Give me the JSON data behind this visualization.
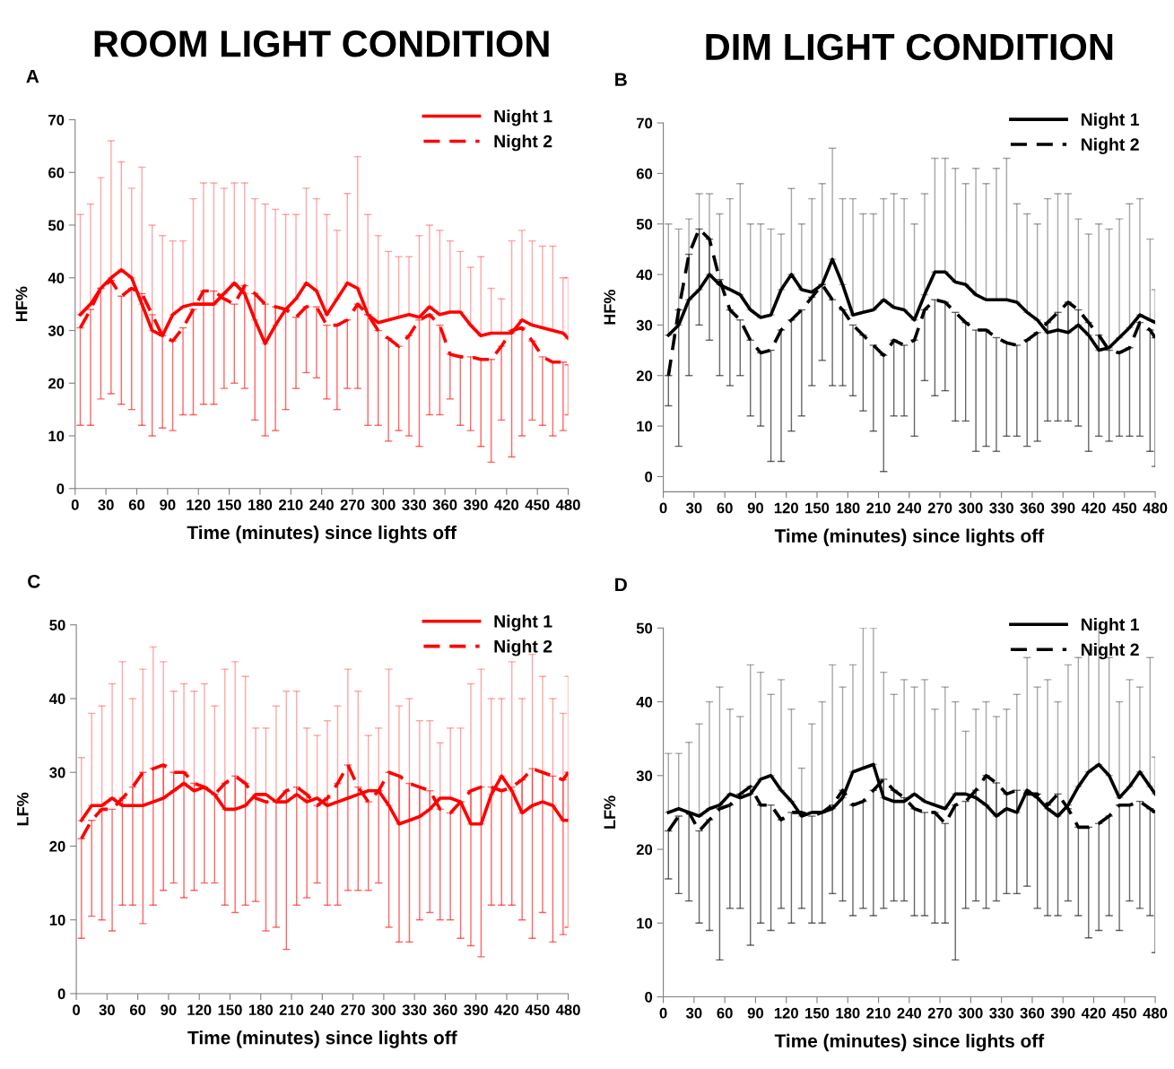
{
  "chart_data": [
    {
      "type": "line",
      "title": "A",
      "annotations": [
        "ROOM LIGHT CONDITION"
      ],
      "xlabel": "Time (minutes) since lights off",
      "ylabel": "HF%",
      "x": [
        5,
        15,
        25,
        35,
        45,
        55,
        65,
        75,
        85,
        95,
        105,
        115,
        125,
        135,
        145,
        155,
        165,
        175,
        185,
        195,
        205,
        215,
        225,
        235,
        245,
        255,
        265,
        275,
        285,
        295,
        305,
        315,
        325,
        335,
        345,
        355,
        365,
        375,
        385,
        395,
        405,
        415,
        425,
        435,
        445,
        455,
        465,
        475,
        480
      ],
      "xlim": [
        0,
        480
      ],
      "xticks": [
        0,
        30,
        60,
        90,
        120,
        150,
        180,
        210,
        240,
        270,
        300,
        330,
        360,
        390,
        420,
        450,
        480
      ],
      "ylim": [
        0,
        70
      ],
      "yticks": [
        0,
        10,
        20,
        30,
        40,
        50,
        60,
        70
      ],
      "grid": false,
      "legend": "top right",
      "marker": "none",
      "series": [
        {
          "name": "Night 1",
          "color": "#ff0000",
          "line_style": "solid",
          "values": [
            33,
            35,
            38,
            40,
            41.5,
            40,
            35,
            30,
            29,
            33,
            34.5,
            35,
            35,
            35,
            37,
            39,
            37,
            32,
            27.5,
            31,
            34,
            36,
            39,
            37.5,
            33,
            36,
            39,
            38,
            33,
            31.5,
            32,
            32.5,
            33,
            32.5,
            34.5,
            33,
            33.5,
            33.5,
            31,
            29,
            29.5,
            29.5,
            29.5,
            32,
            31,
            30.5,
            30,
            29.5,
            28.5
          ],
          "errors": [
            [
              33,
              52
            ],
            [
              35,
              54
            ],
            [
              38,
              59
            ],
            [
              40,
              66
            ],
            [
              41.5,
              62
            ],
            [
              40,
              57
            ],
            [
              35,
              61
            ],
            [
              30,
              50
            ],
            [
              29,
              48
            ],
            [
              33,
              47
            ],
            [
              34.5,
              47
            ],
            [
              35,
              55
            ],
            [
              35,
              58
            ],
            [
              35,
              58
            ],
            [
              37,
              57
            ],
            [
              39,
              58
            ],
            [
              37,
              58
            ],
            [
              32,
              55
            ],
            [
              27.5,
              54
            ],
            [
              31,
              53
            ],
            [
              34,
              52
            ],
            [
              36,
              52
            ],
            [
              39,
              57
            ],
            [
              37.5,
              55
            ],
            [
              33,
              52
            ],
            [
              36,
              49
            ],
            [
              39,
              56
            ],
            [
              38,
              63
            ],
            [
              33,
              52
            ],
            [
              31.5,
              48
            ],
            [
              32,
              45
            ],
            [
              32.5,
              44
            ],
            [
              33,
              44
            ],
            [
              32.5,
              48
            ],
            [
              34.5,
              50
            ],
            [
              33,
              49
            ],
            [
              33.5,
              47
            ],
            [
              33.5,
              45
            ],
            [
              31,
              42
            ],
            [
              29,
              44
            ],
            [
              29.5,
              38
            ],
            [
              29.5,
              36
            ],
            [
              29.5,
              47
            ],
            [
              32,
              49
            ],
            [
              31,
              47
            ],
            [
              30.5,
              46
            ],
            [
              30,
              46
            ],
            [
              29.5,
              40
            ],
            [
              28.5,
              40
            ]
          ]
        },
        {
          "name": "Night 2",
          "color": "#ff0000",
          "line_style": "dashed",
          "values": [
            30.5,
            34,
            38,
            39.5,
            36.5,
            38,
            37,
            33,
            29,
            28,
            30.5,
            34,
            37.5,
            37.5,
            36,
            35,
            38.5,
            37,
            35,
            34.5,
            34,
            32.5,
            34.5,
            34.5,
            31,
            31,
            32,
            35,
            33,
            30,
            28.5,
            27,
            29,
            32,
            33,
            31,
            25.5,
            25,
            25,
            24.5,
            24.5,
            27,
            30,
            30.5,
            28,
            25,
            24,
            24,
            23.5
          ],
          "errors": [
            [
              12,
              30.5
            ],
            [
              12,
              34
            ],
            [
              17,
              38
            ],
            [
              18,
              39.5
            ],
            [
              16,
              36.5
            ],
            [
              15,
              38
            ],
            [
              12,
              37
            ],
            [
              10,
              33
            ],
            [
              11.5,
              29
            ],
            [
              11,
              28
            ],
            [
              14,
              30.5
            ],
            [
              14,
              34
            ],
            [
              16,
              37.5
            ],
            [
              16,
              37.5
            ],
            [
              19,
              36
            ],
            [
              20,
              35
            ],
            [
              19,
              38.5
            ],
            [
              13,
              37
            ],
            [
              10,
              35
            ],
            [
              11,
              34.5
            ],
            [
              15,
              34
            ],
            [
              19,
              32.5
            ],
            [
              22,
              34.5
            ],
            [
              21,
              34.5
            ],
            [
              17,
              31
            ],
            [
              15,
              31
            ],
            [
              19,
              32
            ],
            [
              19,
              35
            ],
            [
              12,
              33
            ],
            [
              12,
              30
            ],
            [
              9,
              28.5
            ],
            [
              11,
              27
            ],
            [
              10,
              29
            ],
            [
              8,
              32
            ],
            [
              14,
              33
            ],
            [
              14,
              31
            ],
            [
              17,
              25.5
            ],
            [
              12,
              25
            ],
            [
              11,
              25
            ],
            [
              8,
              24.5
            ],
            [
              5,
              24.5
            ],
            [
              13,
              27
            ],
            [
              6,
              30
            ],
            [
              10,
              30.5
            ],
            [
              13,
              28
            ],
            [
              12,
              25
            ],
            [
              10,
              24
            ],
            [
              11,
              24
            ],
            [
              14,
              23.5
            ]
          ]
        }
      ]
    },
    {
      "type": "line",
      "title": "B",
      "annotations": [
        "DIM LIGHT CONDITION"
      ],
      "xlabel": "Time (minutes) since lights off",
      "ylabel": "HF%",
      "x": [
        5,
        15,
        25,
        35,
        45,
        55,
        65,
        75,
        85,
        95,
        105,
        115,
        125,
        135,
        145,
        155,
        165,
        175,
        185,
        195,
        205,
        215,
        225,
        235,
        245,
        255,
        265,
        275,
        285,
        295,
        305,
        315,
        325,
        335,
        345,
        355,
        365,
        375,
        385,
        395,
        405,
        415,
        425,
        435,
        445,
        455,
        465,
        475,
        480
      ],
      "xlim": [
        0,
        480
      ],
      "xticks": [
        0,
        30,
        60,
        90,
        120,
        150,
        180,
        210,
        240,
        270,
        300,
        330,
        360,
        390,
        420,
        450,
        480
      ],
      "ylim": [
        -3,
        70
      ],
      "yticks": [
        0,
        10,
        20,
        30,
        40,
        50,
        60,
        70
      ],
      "grid": false,
      "legend": "top right",
      "marker": "none",
      "series": [
        {
          "name": "Night 1",
          "color": "#000000",
          "line_style": "solid",
          "values": [
            28,
            30,
            35,
            37,
            40,
            38,
            37,
            36,
            33,
            31.5,
            32,
            37,
            40,
            37,
            36.5,
            38,
            43,
            38,
            32,
            32.5,
            33,
            35,
            33.5,
            33,
            31,
            36,
            40.5,
            40.5,
            38.5,
            38,
            36,
            35,
            35,
            35,
            34.5,
            32.5,
            31,
            28.5,
            29,
            28.5,
            30,
            28,
            25,
            25.5,
            27.5,
            29.5,
            32,
            31,
            30.5
          ],
          "errors": [
            [
              28,
              50
            ],
            [
              30,
              49
            ],
            [
              35,
              51
            ],
            [
              37,
              56
            ],
            [
              40,
              56
            ],
            [
              38,
              52
            ],
            [
              37,
              55
            ],
            [
              36,
              58
            ],
            [
              33,
              50
            ],
            [
              31.5,
              50
            ],
            [
              32,
              49
            ],
            [
              37,
              48
            ],
            [
              40,
              57
            ],
            [
              37,
              50
            ],
            [
              36.5,
              55
            ],
            [
              38,
              58
            ],
            [
              43,
              65
            ],
            [
              38,
              55
            ],
            [
              32,
              55
            ],
            [
              32.5,
              52
            ],
            [
              33,
              52
            ],
            [
              35,
              55
            ],
            [
              33.5,
              56
            ],
            [
              33,
              55
            ],
            [
              31,
              50
            ],
            [
              36,
              56
            ],
            [
              40.5,
              63
            ],
            [
              40.5,
              63
            ],
            [
              38.5,
              61
            ],
            [
              38,
              58
            ],
            [
              36,
              61
            ],
            [
              35,
              58
            ],
            [
              35,
              61
            ],
            [
              35,
              63
            ],
            [
              34.5,
              54
            ],
            [
              32.5,
              52
            ],
            [
              31,
              50
            ],
            [
              28.5,
              55
            ],
            [
              29,
              56
            ],
            [
              28.5,
              56
            ],
            [
              30,
              51
            ],
            [
              28,
              48
            ],
            [
              25,
              50
            ],
            [
              25.5,
              49
            ],
            [
              27.5,
              51
            ],
            [
              29.5,
              54
            ],
            [
              32,
              55
            ],
            [
              31,
              47
            ],
            [
              30.5,
              37
            ]
          ]
        },
        {
          "name": "Night 2",
          "color": "#000000",
          "line_style": "dashed",
          "values": [
            20,
            33,
            44,
            49,
            47,
            39,
            33,
            31,
            27,
            24.5,
            25,
            29,
            31,
            33,
            35.5,
            38,
            35,
            33,
            30,
            28,
            26,
            24,
            27,
            26,
            27,
            33,
            35,
            34.5,
            32.5,
            30.5,
            29,
            29,
            27.5,
            26.5,
            26,
            27,
            28.5,
            30.5,
            32.5,
            34.5,
            33,
            30.5,
            28,
            25,
            24.5,
            25.5,
            30.5,
            29,
            27.5
          ],
          "errors": [
            [
              14,
              20
            ],
            [
              6,
              33
            ],
            [
              20,
              44
            ],
            [
              30,
              49
            ],
            [
              27,
              47
            ],
            [
              20,
              39
            ],
            [
              18,
              33
            ],
            [
              20,
              31
            ],
            [
              12,
              27
            ],
            [
              10,
              24.5
            ],
            [
              3,
              25
            ],
            [
              3,
              29
            ],
            [
              9,
              31
            ],
            [
              12,
              33
            ],
            [
              18,
              35.5
            ],
            [
              23,
              38
            ],
            [
              18,
              35
            ],
            [
              18,
              33
            ],
            [
              16,
              30
            ],
            [
              13,
              28
            ],
            [
              9,
              26
            ],
            [
              1,
              24
            ],
            [
              12,
              27
            ],
            [
              12,
              26
            ],
            [
              8,
              27
            ],
            [
              19,
              33
            ],
            [
              16,
              35
            ],
            [
              17,
              34.5
            ],
            [
              11,
              32.5
            ],
            [
              11,
              30.5
            ],
            [
              5,
              29
            ],
            [
              6,
              29
            ],
            [
              5,
              27.5
            ],
            [
              8,
              26.5
            ],
            [
              8,
              26
            ],
            [
              6,
              27
            ],
            [
              7,
              28.5
            ],
            [
              11,
              30.5
            ],
            [
              11,
              32.5
            ],
            [
              11,
              34.5
            ],
            [
              10,
              33
            ],
            [
              5,
              30.5
            ],
            [
              8,
              28
            ],
            [
              7,
              25
            ],
            [
              8,
              24.5
            ],
            [
              8,
              25.5
            ],
            [
              8,
              30.5
            ],
            [
              5,
              29
            ],
            [
              2,
              27.5
            ]
          ]
        }
      ]
    },
    {
      "type": "line",
      "title": "C",
      "xlabel": "Time (minutes) since lights off",
      "ylabel": "LF%",
      "x": [
        5,
        15,
        25,
        35,
        45,
        55,
        65,
        75,
        85,
        95,
        105,
        115,
        125,
        135,
        145,
        155,
        165,
        175,
        185,
        195,
        205,
        215,
        225,
        235,
        245,
        255,
        265,
        275,
        285,
        295,
        305,
        315,
        325,
        335,
        345,
        355,
        365,
        375,
        385,
        395,
        405,
        415,
        425,
        435,
        445,
        455,
        465,
        475,
        480
      ],
      "xlim": [
        0,
        480
      ],
      "xticks": [
        0,
        30,
        60,
        90,
        120,
        150,
        180,
        210,
        240,
        270,
        300,
        330,
        360,
        390,
        420,
        450,
        480
      ],
      "ylim": [
        0,
        50
      ],
      "yticks": [
        0,
        10,
        20,
        30,
        40,
        50
      ],
      "grid": false,
      "legend": "top right",
      "marker": "none",
      "series": [
        {
          "name": "Night 1",
          "color": "#ff0000",
          "line_style": "solid",
          "values": [
            23.5,
            25.5,
            25.5,
            26.5,
            25.5,
            25.5,
            25.5,
            26,
            26.5,
            27.5,
            28.5,
            27.5,
            28,
            27,
            25,
            25,
            25.5,
            27,
            27,
            26,
            26,
            27,
            26,
            26.5,
            25.5,
            26,
            26.5,
            27,
            27.5,
            27.5,
            25.5,
            23,
            23.5,
            24,
            25,
            26.5,
            26.5,
            26,
            23,
            23,
            27,
            29.5,
            27.5,
            24.5,
            25.5,
            26,
            25.5,
            23.5,
            23.5
          ],
          "errors": [
            [
              23.5,
              32
            ],
            [
              25.5,
              38
            ],
            [
              25.5,
              39
            ],
            [
              26.5,
              42
            ],
            [
              25.5,
              45
            ],
            [
              25.5,
              40
            ],
            [
              25.5,
              44
            ],
            [
              26,
              47
            ],
            [
              26.5,
              45
            ],
            [
              27.5,
              41
            ],
            [
              28.5,
              42
            ],
            [
              27.5,
              41
            ],
            [
              28,
              42
            ],
            [
              27,
              39
            ],
            [
              25,
              44
            ],
            [
              25,
              45
            ],
            [
              25.5,
              43
            ],
            [
              27,
              36
            ],
            [
              27,
              36
            ],
            [
              26,
              39
            ],
            [
              26,
              41
            ],
            [
              27,
              41
            ],
            [
              26,
              36
            ],
            [
              26.5,
              35
            ],
            [
              25.5,
              37
            ],
            [
              26,
              39
            ],
            [
              26.5,
              44
            ],
            [
              27,
              41
            ],
            [
              27.5,
              35
            ],
            [
              27.5,
              36
            ],
            [
              25.5,
              44
            ],
            [
              23,
              39
            ],
            [
              23.5,
              40
            ],
            [
              24,
              37
            ],
            [
              25,
              37
            ],
            [
              26.5,
              34
            ],
            [
              26.5,
              36
            ],
            [
              26,
              36
            ],
            [
              23,
              42
            ],
            [
              23,
              44
            ],
            [
              27,
              40
            ],
            [
              29.5,
              40
            ],
            [
              27.5,
              45
            ],
            [
              24.5,
              40
            ],
            [
              25.5,
              46
            ],
            [
              26,
              43
            ],
            [
              25.5,
              40
            ],
            [
              23.5,
              38
            ],
            [
              23.5,
              43
            ]
          ]
        },
        {
          "name": "Night 2",
          "color": "#ff0000",
          "line_style": "dashed",
          "values": [
            21,
            23.5,
            25,
            25,
            26.5,
            28,
            30,
            30.5,
            31,
            30,
            30,
            28.5,
            28,
            27,
            28.5,
            29.5,
            28.5,
            26.5,
            26,
            26,
            27.5,
            28,
            27,
            25.5,
            26.5,
            28.5,
            31,
            28,
            26,
            27.5,
            30,
            29.5,
            28.5,
            28,
            27.5,
            25,
            24.5,
            26,
            27.5,
            28,
            28,
            27.5,
            28,
            29,
            30.5,
            30,
            29.5,
            29,
            30
          ],
          "errors": [
            [
              7.5,
              21
            ],
            [
              10.5,
              23.5
            ],
            [
              10,
              25
            ],
            [
              8.5,
              25
            ],
            [
              12,
              26.5
            ],
            [
              12,
              28
            ],
            [
              9.5,
              30
            ],
            [
              12,
              30.5
            ],
            [
              14,
              31
            ],
            [
              15,
              30
            ],
            [
              13,
              30
            ],
            [
              14,
              28.5
            ],
            [
              15,
              28
            ],
            [
              15,
              27
            ],
            [
              12,
              28.5
            ],
            [
              11,
              29.5
            ],
            [
              12,
              28.5
            ],
            [
              12.5,
              26.5
            ],
            [
              8.5,
              26
            ],
            [
              9,
              26
            ],
            [
              6,
              27.5
            ],
            [
              12,
              28
            ],
            [
              13,
              27
            ],
            [
              15,
              25.5
            ],
            [
              12,
              26.5
            ],
            [
              12,
              28.5
            ],
            [
              14,
              31
            ],
            [
              14,
              28
            ],
            [
              14,
              26
            ],
            [
              15,
              27.5
            ],
            [
              9,
              30
            ],
            [
              7,
              29.5
            ],
            [
              7,
              28.5
            ],
            [
              10,
              28
            ],
            [
              11,
              27.5
            ],
            [
              10,
              25
            ],
            [
              10,
              24.5
            ],
            [
              7.5,
              26
            ],
            [
              6.5,
              27.5
            ],
            [
              5,
              28
            ],
            [
              12,
              28
            ],
            [
              12,
              27.5
            ],
            [
              12,
              28
            ],
            [
              10,
              29
            ],
            [
              7.5,
              30.5
            ],
            [
              11,
              30
            ],
            [
              7,
              29.5
            ],
            [
              8,
              29
            ],
            [
              9,
              30
            ]
          ]
        }
      ]
    },
    {
      "type": "line",
      "title": "D",
      "xlabel": "Time (minutes) since lights off",
      "ylabel": "LF%",
      "x": [
        5,
        15,
        25,
        35,
        45,
        55,
        65,
        75,
        85,
        95,
        105,
        115,
        125,
        135,
        145,
        155,
        165,
        175,
        185,
        195,
        205,
        215,
        225,
        235,
        245,
        255,
        265,
        275,
        285,
        295,
        305,
        315,
        325,
        335,
        345,
        355,
        365,
        375,
        385,
        395,
        405,
        415,
        425,
        435,
        445,
        455,
        465,
        475,
        480
      ],
      "xlim": [
        0,
        480
      ],
      "xticks": [
        0,
        30,
        60,
        90,
        120,
        150,
        180,
        210,
        240,
        270,
        300,
        330,
        360,
        390,
        420,
        450,
        480
      ],
      "ylim": [
        0,
        50
      ],
      "yticks": [
        0,
        10,
        20,
        30,
        40,
        50
      ],
      "grid": false,
      "legend": "top right",
      "marker": "none",
      "series": [
        {
          "name": "Night 1",
          "color": "#000000",
          "line_style": "solid",
          "values": [
            25,
            25.5,
            25,
            24.5,
            25.5,
            26,
            27.5,
            27,
            27.5,
            29.5,
            30,
            28,
            26.5,
            24.5,
            25,
            25,
            25.5,
            27,
            30.5,
            31,
            31.5,
            27,
            26.5,
            26.5,
            27.5,
            26.5,
            26,
            25.5,
            27.5,
            27.5,
            27,
            26,
            24.5,
            25.5,
            25,
            28,
            27,
            25.5,
            24.5,
            26,
            28.5,
            30.5,
            31.5,
            30,
            27,
            28.5,
            30.5,
            28.5,
            27.5
          ],
          "errors": [
            [
              25,
              33
            ],
            [
              25.5,
              33
            ],
            [
              25,
              34.5
            ],
            [
              24.5,
              37
            ],
            [
              25.5,
              40
            ],
            [
              26,
              42
            ],
            [
              27.5,
              39
            ],
            [
              27,
              38
            ],
            [
              27.5,
              45
            ],
            [
              29.5,
              44
            ],
            [
              30,
              41
            ],
            [
              28,
              43
            ],
            [
              26.5,
              39
            ],
            [
              24.5,
              31
            ],
            [
              25,
              37
            ],
            [
              25,
              40
            ],
            [
              25.5,
              45
            ],
            [
              27,
              42
            ],
            [
              30.5,
              45
            ],
            [
              31,
              50
            ],
            [
              31.5,
              50
            ],
            [
              27,
              44
            ],
            [
              26.5,
              41
            ],
            [
              26.5,
              43
            ],
            [
              27.5,
              42
            ],
            [
              26.5,
              43
            ],
            [
              26,
              39
            ],
            [
              25.5,
              42
            ],
            [
              27.5,
              40
            ],
            [
              27.5,
              36
            ],
            [
              27,
              39
            ],
            [
              26,
              40
            ],
            [
              24.5,
              38
            ],
            [
              25.5,
              39
            ],
            [
              25,
              41
            ],
            [
              28,
              46
            ],
            [
              27,
              42
            ],
            [
              25.5,
              43
            ],
            [
              24.5,
              40
            ],
            [
              26,
              45
            ],
            [
              28.5,
              46
            ],
            [
              30.5,
              47
            ],
            [
              31.5,
              50
            ],
            [
              30,
              46
            ],
            [
              27,
              40
            ],
            [
              28.5,
              43
            ],
            [
              30.5,
              42
            ],
            [
              28.5,
              46
            ],
            [
              27.5,
              32.5
            ]
          ]
        },
        {
          "name": "Night 2",
          "color": "#000000",
          "line_style": "dashed",
          "values": [
            22.5,
            24.5,
            25,
            22.5,
            24,
            25.5,
            26,
            27.5,
            28.5,
            26,
            26,
            24,
            25,
            25,
            24.5,
            25,
            26,
            28,
            26,
            26.5,
            28,
            29.5,
            28,
            27,
            25.5,
            25,
            25,
            23.5,
            26,
            26.5,
            28,
            30,
            29,
            27.5,
            28,
            27.5,
            27.5,
            26,
            27.5,
            25.5,
            23,
            23,
            23.5,
            24.5,
            26,
            26,
            26.5,
            25.5,
            25
          ],
          "errors": [
            [
              16,
              22.5
            ],
            [
              14,
              24.5
            ],
            [
              13,
              25
            ],
            [
              10,
              22.5
            ],
            [
              9,
              24
            ],
            [
              5,
              25.5
            ],
            [
              12,
              26
            ],
            [
              12,
              27.5
            ],
            [
              7,
              28.5
            ],
            [
              10,
              26
            ],
            [
              9,
              26
            ],
            [
              12,
              24
            ],
            [
              10,
              25
            ],
            [
              12,
              25
            ],
            [
              10,
              24.5
            ],
            [
              10,
              25
            ],
            [
              14,
              26
            ],
            [
              13,
              28
            ],
            [
              11,
              26
            ],
            [
              12,
              26.5
            ],
            [
              11,
              28
            ],
            [
              12,
              29.5
            ],
            [
              13,
              28
            ],
            [
              13,
              27
            ],
            [
              11,
              25.5
            ],
            [
              11,
              25
            ],
            [
              10,
              25
            ],
            [
              10,
              23.5
            ],
            [
              5,
              26
            ],
            [
              12,
              26.5
            ],
            [
              13,
              28
            ],
            [
              12,
              30
            ],
            [
              13,
              29
            ],
            [
              14,
              27.5
            ],
            [
              14,
              28
            ],
            [
              15,
              27.5
            ],
            [
              12,
              27.5
            ],
            [
              11,
              26
            ],
            [
              11,
              27.5
            ],
            [
              13,
              25.5
            ],
            [
              11,
              23
            ],
            [
              8,
              23
            ],
            [
              9,
              23.5
            ],
            [
              11,
              24.5
            ],
            [
              9,
              26
            ],
            [
              13,
              26
            ],
            [
              12,
              26.5
            ],
            [
              11,
              25.5
            ],
            [
              6,
              25
            ]
          ]
        }
      ]
    }
  ]
}
